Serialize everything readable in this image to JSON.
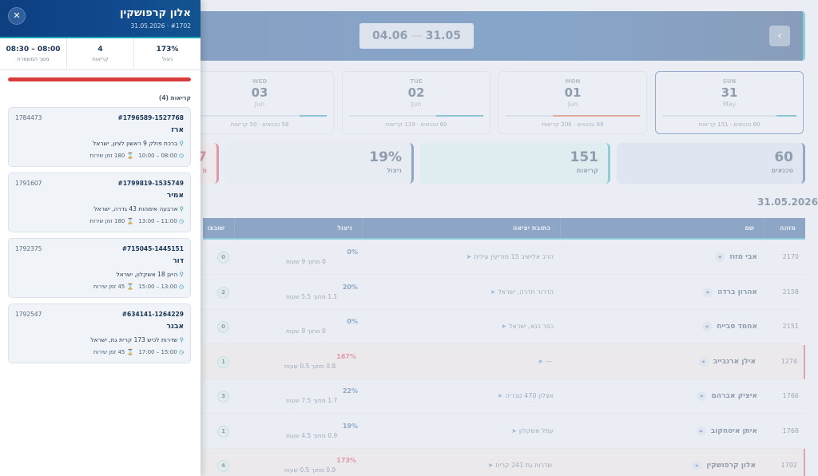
{
  "drawer": {
    "title": "אלון קרפושקין",
    "subtitle": "31.05.2026 · #1702",
    "close_glyph": "✕",
    "stats": [
      {
        "value": "173%",
        "label": "ניצול"
      },
      {
        "value": "4",
        "label": "קריאות"
      },
      {
        "value": "08:00 – 08:30",
        "label": "משך המשמרת"
      }
    ],
    "progress_fraction": 1.0,
    "list_title": "קריאות (4)",
    "calls": [
      {
        "id": "#1796589-1527768",
        "ext": "1784473",
        "name": "ארז",
        "address": "ברכת פולק 9 ראשון לציון, ישראל",
        "time": "08:00 – 10:00",
        "service": "180 זמן שירות"
      },
      {
        "id": "#1799819-1535749",
        "ext": "1791607",
        "name": "אמיר",
        "address": "ארבעה אימהות 43 גדרה, ישראל",
        "time": "11:00 – 13:00",
        "service": "180 זמן שירות"
      },
      {
        "id": "#715045-1445151",
        "ext": "1792375",
        "name": "דור",
        "address": "הייגן 18 אשקלון, ישראל",
        "time": "13:00 – 15:00",
        "service": "45 זמן שירות"
      },
      {
        "id": "#634141-1264229",
        "ext": "1792547",
        "name": "אבנר",
        "address": "שדרות לכיש 173 קרית גת, ישראל",
        "time": "15:00 – 17:00",
        "service": "45 זמן שירות"
      }
    ]
  },
  "dashboard": {
    "range_start": "04.06",
    "range_end": "31.05",
    "range_sep": "—",
    "next_glyph": "›",
    "days": [
      {
        "dow": "SUN",
        "num": "31",
        "mon": "May",
        "stats": "60 טכנאים · 151 קריאות",
        "fill": 0.15,
        "color": "#1a8fa6",
        "active": true
      },
      {
        "dow": "MON",
        "num": "01",
        "mon": "Jun",
        "stats": "69 טכנאים · 206 קריאות",
        "fill": 0.65,
        "color": "#d6552c",
        "active": false
      },
      {
        "dow": "TUE",
        "num": "02",
        "mon": "Jun",
        "stats": "60 טכנאים · 119 קריאות",
        "fill": 0.35,
        "color": "#1a8fa6",
        "active": false
      },
      {
        "dow": "WED",
        "num": "03",
        "mon": "Jun",
        "stats": "58 טכנאים · 50 קריאות",
        "fill": 0.2,
        "color": "#1a8fa6",
        "active": false
      }
    ],
    "kpis": [
      {
        "value": "60",
        "label": "טכנאים"
      },
      {
        "value": "151",
        "label": "קריאות"
      },
      {
        "value": "19%",
        "label": "ניצול"
      },
      {
        "value": "7",
        "label": "מ"
      }
    ],
    "section_date": "31.05.2026",
    "columns": [
      "מזהה",
      "שם",
      "כתובת יציאה",
      "ניצול",
      "שובצו"
    ],
    "rows": [
      {
        "id": "2170",
        "name": "אבי מזוז",
        "address": "הרב אלישיב 15 מודיעין עילית",
        "pct": "0%",
        "hours": "0 מתוך 9 שעות",
        "count": "0",
        "warn": false,
        "red": false
      },
      {
        "id": "2158",
        "name": "אהרון ברדה",
        "address": "הדרור חדרה, ישראל",
        "pct": "20%",
        "hours": "1.1 מתוך 5.5 שעות",
        "count": "2",
        "warn": false,
        "red": false
      },
      {
        "id": "2151",
        "name": "אחמד סבייח",
        "address": "כפר כנא, ישראל",
        "pct": "0%",
        "hours": "0 מתוך 9 שעות",
        "count": "0",
        "warn": false,
        "red": false
      },
      {
        "id": "1274",
        "name": "אילן ארנבייב",
        "address": "—",
        "pct": "167%",
        "hours": "0.8 מתוך 0.5 שעות",
        "count": "1",
        "warn": true,
        "red": true
      },
      {
        "id": "1766",
        "name": "איציק אברהם",
        "address": "אצלון 470 טבריה",
        "pct": "22%",
        "hours": "1.7 מתוך 7.5 שעות",
        "count": "3",
        "warn": false,
        "red": false
      },
      {
        "id": "1768",
        "name": "איתן איטחקוב",
        "address": "עמל אשקלון",
        "pct": "19%",
        "hours": "0.9 מתוך 4.5 שעות",
        "count": "1",
        "warn": false,
        "red": false
      },
      {
        "id": "1702",
        "name": "אלון קרפושקין",
        "address": "שדרות גת 241 קרית",
        "pct": "173%",
        "hours": "0.9 מתוך 0.5 שעות",
        "count": "4",
        "warn": true,
        "red": true
      }
    ]
  }
}
